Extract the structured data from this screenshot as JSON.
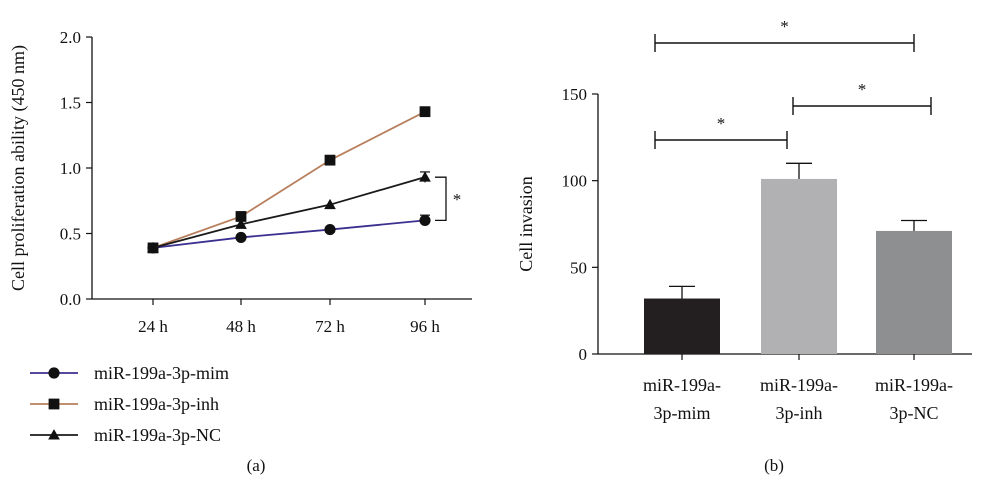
{
  "chart_data": [
    {
      "type": "line",
      "panel_label": "(a)",
      "ylabel": "Cell proliferation ability (450 nm)",
      "xlabel": "",
      "categories": [
        "24 h",
        "48 h",
        "72 h",
        "96 h"
      ],
      "ylim": [
        0,
        2.0
      ],
      "yticks": [
        "0.0",
        "0.5",
        "1.0",
        "1.5",
        "2.0"
      ],
      "legend_position": "bottom-left",
      "series": [
        {
          "name": "miR-199a-3p-mim",
          "values": [
            0.39,
            0.47,
            0.53,
            0.6
          ],
          "errors": [
            0.02,
            0.02,
            0.02,
            0.04
          ],
          "color": "#3b2f8f",
          "marker": "circle"
        },
        {
          "name": "miR-199a-3p-inh",
          "values": [
            0.39,
            0.63,
            1.06,
            1.43
          ],
          "errors": [
            0.02,
            0.02,
            0.02,
            0.02
          ],
          "color": "#b87f5c",
          "marker": "square"
        },
        {
          "name": "miR-199a-3p-NC",
          "values": [
            0.39,
            0.57,
            0.72,
            0.93
          ],
          "errors": [
            0.02,
            0.02,
            0.02,
            0.04
          ],
          "color": "#1a1a1a",
          "marker": "triangle"
        }
      ],
      "annotations": [
        {
          "text": "*",
          "between": [
            0,
            2
          ],
          "at": "96 h"
        }
      ]
    },
    {
      "type": "bar",
      "panel_label": "(b)",
      "ylabel": "Cell invasion",
      "xlabel": "",
      "categories": [
        [
          "miR-199a-",
          "3p-mim"
        ],
        [
          "miR-199a-",
          "3p-inh"
        ],
        [
          "miR-199a-",
          "3p-NC"
        ]
      ],
      "values": [
        32,
        101,
        71
      ],
      "errors": [
        7,
        9,
        6
      ],
      "colors": [
        "#231f20",
        "#b1b1b3",
        "#8e8f91"
      ],
      "ylim": [
        0,
        150
      ],
      "yticks": [
        "0",
        "50",
        "100",
        "150"
      ],
      "significance": [
        {
          "from": 0,
          "to": 1,
          "label": "*"
        },
        {
          "from": 1,
          "to": 2,
          "label": "*"
        },
        {
          "from": 0,
          "to": 2,
          "label": "*"
        }
      ]
    }
  ]
}
